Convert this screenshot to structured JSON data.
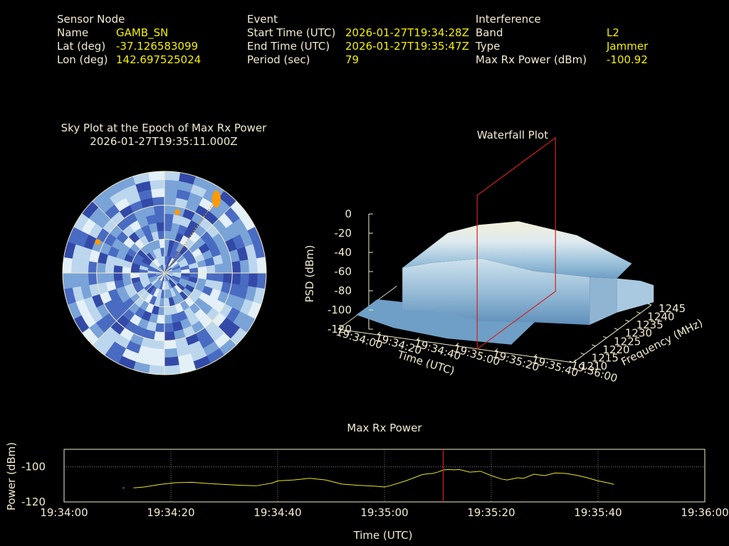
{
  "header": {
    "sensor": {
      "section": "Sensor Node",
      "name_label": "Name",
      "name": "GAMB_SN",
      "lat_label": "Lat (deg)",
      "lat": "-37.126583099",
      "lon_label": "Lon (deg)",
      "lon": "142.697525024"
    },
    "event": {
      "section": "Event",
      "start_label": "Start Time (UTC)",
      "start": "2026-01-27T19:34:28Z",
      "end_label": "End Time (UTC)",
      "end": "2026-01-27T19:35:47Z",
      "period_label": "Period (sec)",
      "period": "79"
    },
    "interference": {
      "section": "Interference",
      "band_label": "Band",
      "band": "L2",
      "type_label": "Type",
      "type": "Jammer",
      "maxrx_label": "Max Rx Power (dBm)",
      "maxrx": "-100.92"
    }
  },
  "colors": {
    "label_text": "#f3ead0",
    "value_text": "#f5f000",
    "background": "#000000",
    "marker": "#d42020",
    "power_line": "#e6e620",
    "hotspot": "#ff9a00"
  },
  "chart_data": [
    {
      "type": "heatmap",
      "subtype": "polar-sky-plot",
      "title": "Sky Plot at the Epoch of Max Rx Power",
      "subtitle": "2026-01-27T19:35:11.000Z",
      "rings_elevation_deg": [
        0,
        30,
        60
      ],
      "hotspots": [
        {
          "azimuth_deg": 35,
          "elevation_deg": 10
        },
        {
          "azimuth_deg": 12,
          "elevation_deg": 35
        },
        {
          "azimuth_deg": 295,
          "elevation_deg": 25
        }
      ],
      "colormap": [
        "#3349a8",
        "#4a6bc2",
        "#7aa3d8",
        "#bcd6ee",
        "#e4f0f8"
      ]
    },
    {
      "type": "area",
      "subtype": "3d-waterfall",
      "title": "Waterfall Plot",
      "xlabel": "Time (UTC)",
      "ylabel": "Frequency (MHz)",
      "zlabel": "PSD (dBm)",
      "x_ticks": [
        "19:34:00",
        "19:34:20",
        "19:34:40",
        "19:35:00",
        "19:35:20",
        "19:35:40",
        "19:36:00"
      ],
      "y_ticks": [
        "1210",
        "1215",
        "1220",
        "1225",
        "1230",
        "1235",
        "1240",
        "1245"
      ],
      "z_ticks": [
        "0",
        "-20",
        "-40",
        "-60",
        "-80",
        "-100",
        "-120"
      ],
      "zlim": [
        -120,
        0
      ],
      "marker_time": "19:35:11"
    },
    {
      "type": "line",
      "title": "Max Rx Power",
      "xlabel": "Time (UTC)",
      "ylabel": "Power (dBm)",
      "x_ticks": [
        "19:34:00",
        "19:34:20",
        "19:34:40",
        "19:35:00",
        "19:35:20",
        "19:35:40",
        "19:36:00"
      ],
      "y_ticks": [
        "-100",
        "-120"
      ],
      "xlim_sec": [
        0,
        120
      ],
      "ylim": [
        -120,
        -90
      ],
      "grid": true,
      "marker_sec": 71,
      "series": [
        {
          "x_sec": [
            13,
            15,
            18,
            21,
            24,
            27,
            30,
            33,
            36,
            39,
            40,
            43,
            46,
            49,
            52,
            55,
            58,
            60,
            61,
            64,
            67,
            68,
            69,
            70,
            71,
            72,
            73,
            74,
            76,
            78,
            80,
            82,
            83,
            85,
            86,
            88,
            90,
            92,
            94,
            96,
            98,
            100,
            102,
            103
          ],
          "values": [
            -112,
            -111.5,
            -110,
            -109,
            -108.8,
            -109.5,
            -110,
            -110.5,
            -110.8,
            -109.2,
            -108,
            -107.5,
            -106.5,
            -107.5,
            -109.8,
            -110.5,
            -111,
            -111.5,
            -110.8,
            -108,
            -104.5,
            -104,
            -103.8,
            -103,
            -101.8,
            -101.5,
            -101.7,
            -101.5,
            -103,
            -102.5,
            -105,
            -107,
            -107.5,
            -106.2,
            -106.6,
            -104.2,
            -105,
            -103.5,
            -103.8,
            -104.8,
            -106.2,
            -108,
            -109.2,
            -110
          ]
        }
      ]
    }
  ]
}
